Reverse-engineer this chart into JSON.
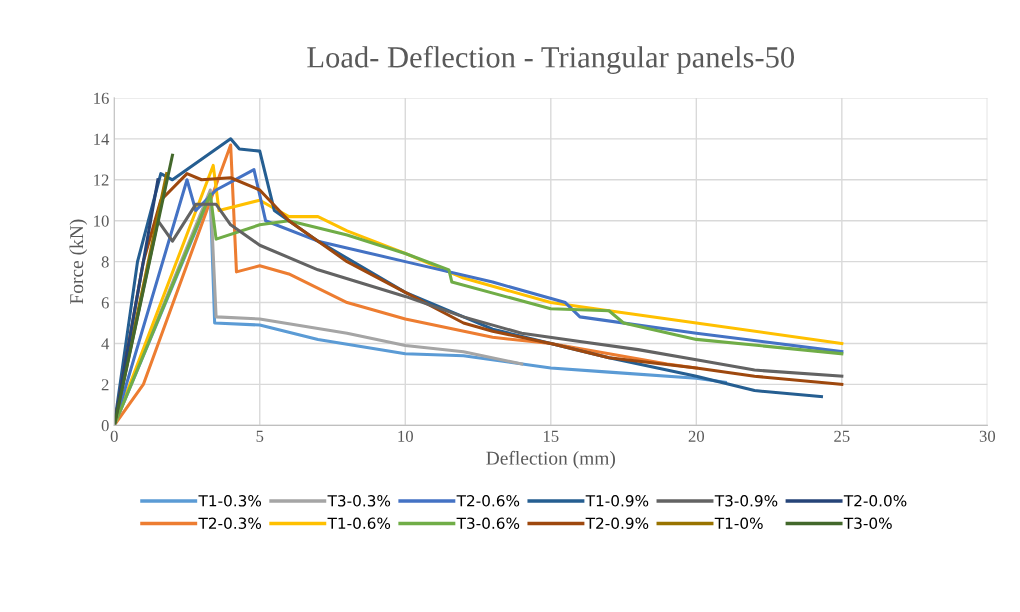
{
  "chart_data": {
    "type": "line",
    "title": "Load- Deflection - Triangular panels-50",
    "xlabel": "Deflection (mm)",
    "ylabel": "Force (kN)",
    "xlim": [
      0,
      30
    ],
    "xticks": [
      0,
      5,
      10,
      15,
      20,
      25,
      30
    ],
    "ylim": [
      0,
      16
    ],
    "yticks": [
      0,
      2,
      4,
      6,
      8,
      10,
      12,
      14,
      16
    ],
    "grid": true,
    "legend": "bottom",
    "marker": "none",
    "line_style": "solid",
    "series": [
      {
        "name": "T1-0.3%",
        "color": "#5b9bd5",
        "x": [
          0,
          3.3,
          3.45,
          5,
          7,
          10,
          12,
          15,
          17,
          20,
          21
        ],
        "values": [
          0,
          11.2,
          5.0,
          4.9,
          4.2,
          3.5,
          3.4,
          2.8,
          2.6,
          2.3,
          2.1
        ]
      },
      {
        "name": "T2-0.3%",
        "color": "#ed7d31",
        "x": [
          0,
          1,
          4,
          4.2,
          5,
          6,
          8,
          10,
          13,
          15,
          17,
          19,
          20
        ],
        "values": [
          0,
          2,
          13.7,
          7.5,
          7.8,
          7.4,
          6,
          5.2,
          4.3,
          4.0,
          3.5,
          3.0,
          2.8
        ]
      },
      {
        "name": "T3-0.3%",
        "color": "#a5a5a5",
        "x": [
          0,
          3.3,
          3.5,
          5,
          8,
          10,
          12,
          14
        ],
        "values": [
          0,
          11.5,
          5.3,
          5.2,
          4.5,
          3.9,
          3.6,
          3.0
        ]
      },
      {
        "name": "T1-0.6%",
        "color": "#ffc000",
        "x": [
          0,
          3.4,
          3.6,
          5,
          6,
          7,
          8,
          10,
          12,
          15,
          17,
          20,
          25
        ],
        "values": [
          0,
          12.7,
          10.5,
          11,
          10.2,
          10.2,
          9.5,
          8.4,
          7.2,
          6.0,
          5.6,
          5.0,
          4.0
        ]
      },
      {
        "name": "T2-0.6%",
        "color": "#4472c4",
        "x": [
          0,
          2.5,
          2.8,
          3.5,
          4.8,
          5.2,
          7,
          10,
          13,
          15.5,
          16,
          20,
          25
        ],
        "values": [
          0,
          12,
          10.5,
          11.5,
          12.5,
          10,
          9.0,
          8.0,
          7.0,
          6.0,
          5.3,
          4.5,
          3.6
        ]
      },
      {
        "name": "T3-0.6%",
        "color": "#70ad47",
        "x": [
          0,
          3.3,
          3.5,
          5,
          6,
          8,
          10,
          11.5,
          11.6,
          15,
          17,
          17.5,
          20,
          25
        ],
        "values": [
          0,
          11.3,
          9.1,
          9.8,
          10,
          9.3,
          8.4,
          7.6,
          7.0,
          5.7,
          5.6,
          5.0,
          4.2,
          3.5
        ]
      },
      {
        "name": "T1-0.9%",
        "color": "#255e91",
        "x": [
          0,
          0.8,
          1.6,
          2,
          3,
          4,
          4.3,
          5,
          5.5,
          7,
          10,
          13,
          15,
          17,
          20,
          22,
          24.3
        ],
        "values": [
          0,
          8,
          12.3,
          12,
          13,
          14,
          13.5,
          13.4,
          10.5,
          9,
          6.5,
          4.7,
          4.0,
          3.3,
          2.4,
          1.7,
          1.4
        ]
      },
      {
        "name": "T2-0.9%",
        "color": "#9e480e",
        "x": [
          0,
          1,
          1.6,
          2.5,
          3,
          4,
          5,
          6,
          8,
          10,
          12,
          13,
          15,
          17,
          20,
          22,
          25
        ],
        "values": [
          0,
          8,
          11,
          12.3,
          12,
          12.1,
          11.5,
          10,
          8,
          6.5,
          5,
          4.6,
          4.0,
          3.3,
          2.8,
          2.4,
          2.0
        ]
      },
      {
        "name": "T3-0.9%",
        "color": "#636363",
        "x": [
          0,
          1.5,
          2,
          2.8,
          3.5,
          4,
          5,
          7,
          10,
          12,
          14,
          16,
          18,
          20,
          22,
          25
        ],
        "values": [
          0,
          10,
          9,
          10.8,
          10.8,
          9.8,
          8.8,
          7.6,
          6.3,
          5.3,
          4.5,
          4.1,
          3.7,
          3.2,
          2.7,
          2.4
        ]
      },
      {
        "name": "T1-0%",
        "color": "#997300",
        "x": [
          0,
          1.8
        ],
        "values": [
          0,
          12.3
        ]
      },
      {
        "name": "T2-0.0%",
        "color": "#264478",
        "x": [
          0,
          1.5
        ],
        "values": [
          0,
          12
        ]
      },
      {
        "name": "T3-0%",
        "color": "#43682b",
        "x": [
          0,
          2
        ],
        "values": [
          0,
          13.2
        ]
      }
    ]
  }
}
